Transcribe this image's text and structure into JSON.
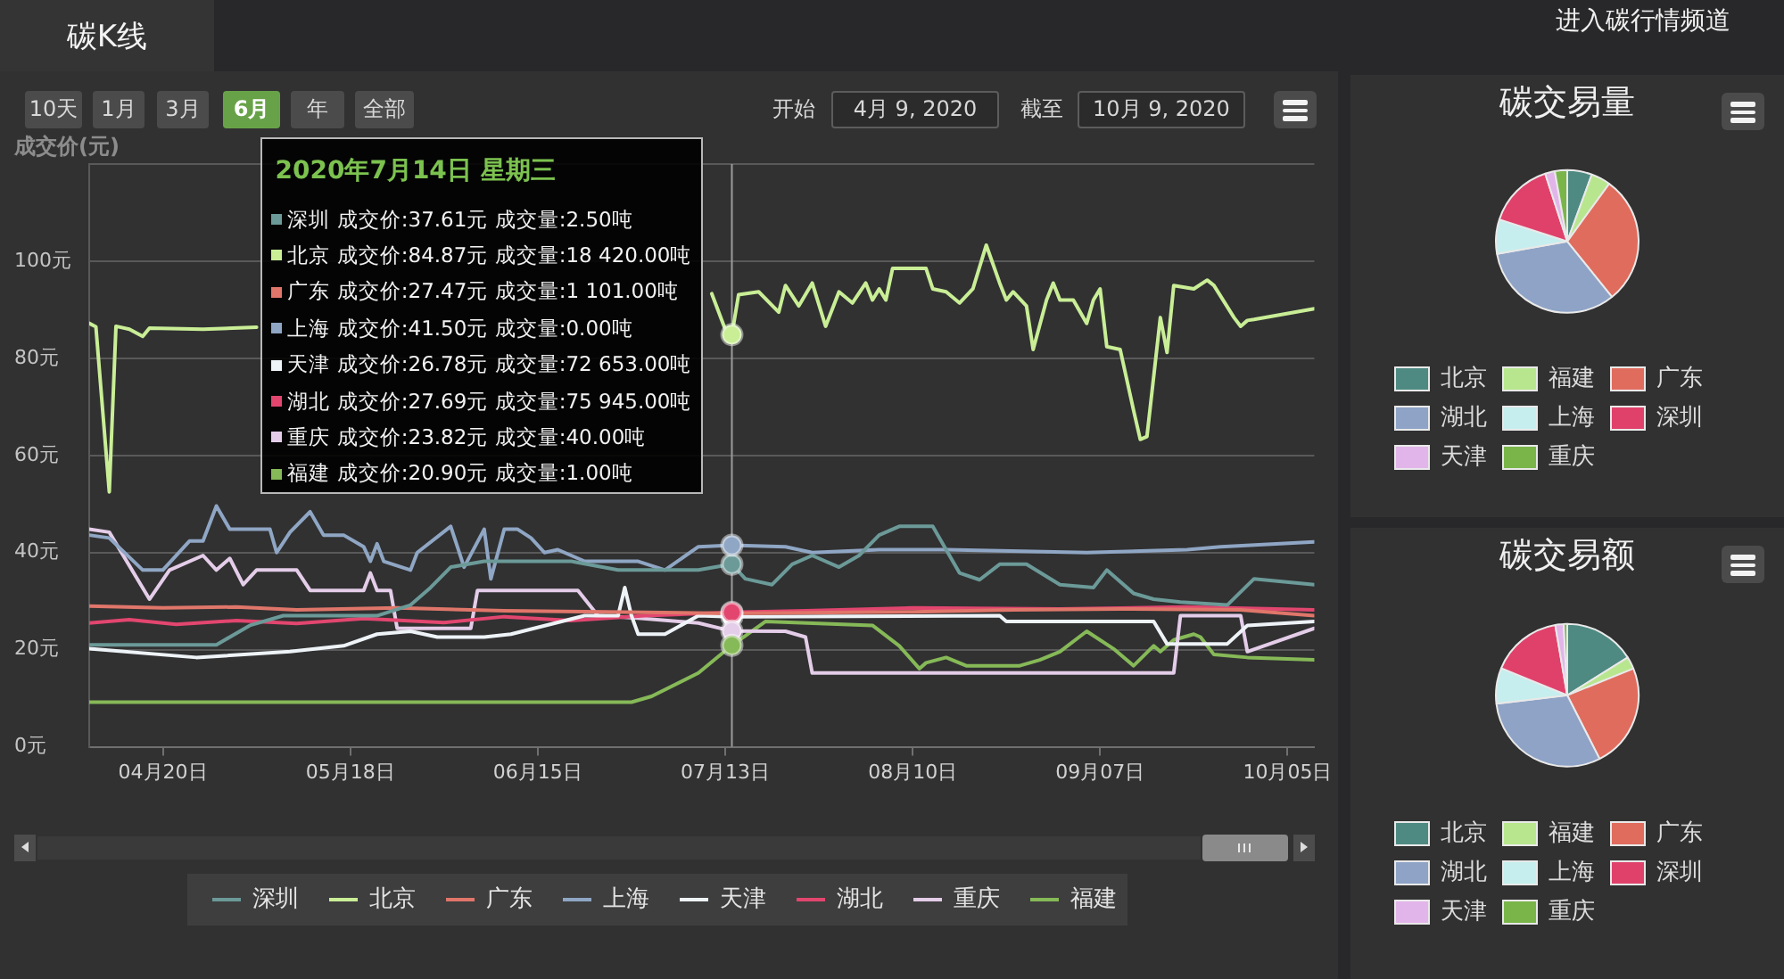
{
  "chart_data": [
    {
      "type": "line",
      "title": "碳K线",
      "ylabel": "成交价(元)",
      "xlim": [
        "2020-04-09",
        "2020-10-09"
      ],
      "xticks": [
        {
          "value": "2020-04-20",
          "label": "04月20日"
        },
        {
          "value": "2020-05-18",
          "label": "05月18日"
        },
        {
          "value": "2020-06-15",
          "label": "06月15日"
        },
        {
          "value": "2020-07-13",
          "label": "07月13日"
        },
        {
          "value": "2020-08-10",
          "label": "08月10日"
        },
        {
          "value": "2020-09-07",
          "label": "09月07日"
        },
        {
          "value": "2020-10-05",
          "label": "10月05日"
        }
      ],
      "ylim": [
        0,
        120
      ],
      "yticks": [
        {
          "value": 0,
          "label": "0元"
        },
        {
          "value": 20,
          "label": "20元"
        },
        {
          "value": 40,
          "label": "40元"
        },
        {
          "value": 60,
          "label": "60元"
        },
        {
          "value": 80,
          "label": "80元"
        },
        {
          "value": 100,
          "label": "100元"
        },
        {
          "value": 120,
          "label": null
        }
      ],
      "grid": "y",
      "legend": "bottom",
      "marker": "none",
      "line_style": "solid",
      "ref_lines": [
        {
          "axis": "x",
          "value": "2020-07-14",
          "color": "#9b9b9b"
        }
      ],
      "annotations": [
        "10天",
        "1月",
        "3月",
        "6月",
        "年",
        "全部",
        "开始",
        "4月 9, 2020",
        "截至",
        "10月 9, 2020",
        "2020年7月14日 星期三",
        "深圳 成交价:37.61元 成交量:2.50吨",
        "北京 成交价:84.87元 成交量:18 420.00吨",
        "广东 成交价:27.47元 成交量:1 101.00吨",
        "上海 成交价:41.50元 成交量:0.00吨",
        "天津 成交价:26.78元 成交量:72 653.00吨",
        "湖北 成交价:27.69元 成交量:75 945.00吨",
        "重庆 成交价:23.82元 成交量:40.00吨",
        "福建 成交价:20.90元 成交量:1.00吨"
      ],
      "series": [
        {
          "name": "深圳",
          "color": "#6b9a98",
          "x": [
            "2020-04-09",
            "2020-04-28",
            "2020-05-03",
            "2020-05-08",
            "2020-05-22",
            "2020-05-27",
            "2020-05-30",
            "2020-06-02",
            "2020-06-07",
            "2020-06-20",
            "2020-06-27",
            "2020-07-09",
            "2020-07-14",
            "2020-07-16",
            "2020-07-20",
            "2020-07-23",
            "2020-07-26",
            "2020-07-30",
            "2020-08-02",
            "2020-08-05",
            "2020-08-08",
            "2020-08-13",
            "2020-08-15",
            "2020-08-17",
            "2020-08-20",
            "2020-08-23",
            "2020-08-27",
            "2020-09-01",
            "2020-09-06",
            "2020-09-08",
            "2020-09-12",
            "2020-09-15",
            "2020-09-19",
            "2020-09-26",
            "2020-09-30",
            "2020-10-09"
          ],
          "values": [
            21.0,
            21.0,
            25.0,
            27.0,
            27.0,
            29.2,
            32.8,
            37.0,
            38.2,
            38.2,
            36.4,
            36.4,
            37.61,
            34.6,
            33.4,
            37.6,
            39.4,
            37.0,
            39.4,
            43.6,
            45.4,
            45.4,
            40.6,
            35.8,
            34.4,
            37.6,
            37.6,
            33.4,
            32.8,
            36.4,
            31.6,
            30.4,
            29.8,
            29.2,
            34.6,
            33.4
          ]
        },
        {
          "name": "北京",
          "color": "#c9ee96",
          "x": [
            "2020-04-09",
            "2020-04-10",
            "2020-04-12",
            "2020-04-13",
            "2020-04-15",
            "2020-04-17",
            "2020-04-18",
            "2020-04-26",
            "2020-05-04",
            "2020-05-05",
            "2020-07-11",
            "2020-07-13",
            "2020-07-14",
            "2020-07-15",
            "2020-07-18",
            "2020-07-21",
            "2020-07-22",
            "2020-07-24",
            "2020-07-26",
            "2020-07-28",
            "2020-07-30",
            "2020-08-01",
            "2020-08-03",
            "2020-08-04",
            "2020-08-05",
            "2020-08-06",
            "2020-08-07",
            "2020-08-12",
            "2020-08-13",
            "2020-08-15",
            "2020-08-17",
            "2020-08-19",
            "2020-08-21",
            "2020-08-23",
            "2020-08-24",
            "2020-08-25",
            "2020-08-27",
            "2020-08-28",
            "2020-08-30",
            "2020-08-31",
            "2020-09-01",
            "2020-09-03",
            "2020-09-05",
            "2020-09-06",
            "2020-09-07",
            "2020-09-08",
            "2020-09-10",
            "2020-09-12",
            "2020-09-13",
            "2020-09-14",
            "2020-09-16",
            "2020-09-17",
            "2020-09-18",
            "2020-09-21",
            "2020-09-23",
            "2020-09-24",
            "2020-09-27",
            "2020-09-28",
            "2020-09-29",
            "2020-09-30",
            "2020-10-09"
          ],
          "values": [
            87.2,
            86.5,
            52.5,
            86.6,
            86.0,
            84.5,
            86.2,
            86.0,
            86.4,
            null,
            93.3,
            86.0,
            84.87,
            93.1,
            93.7,
            89.5,
            95.0,
            90.8,
            95.5,
            86.6,
            93.7,
            91.4,
            95.5,
            92.0,
            94.3,
            92.0,
            98.5,
            98.5,
            94.3,
            93.7,
            91.4,
            94.3,
            103.3,
            95.5,
            92.0,
            93.7,
            90.8,
            81.8,
            92.0,
            95.5,
            92.0,
            92.0,
            87.2,
            92.0,
            94.3,
            82.4,
            81.8,
            69.3,
            63.3,
            63.9,
            88.4,
            81.2,
            95.0,
            94.3,
            96.1,
            95.0,
            88.4,
            86.6,
            87.8,
            88.0,
            90.2
          ]
        },
        {
          "name": "广东",
          "color": "#e0766a",
          "x": [
            "2020-04-09",
            "2020-04-20",
            "2020-05-01",
            "2020-05-10",
            "2020-05-25",
            "2020-06-10",
            "2020-06-25",
            "2020-07-14",
            "2020-07-25",
            "2020-08-10",
            "2020-08-25",
            "2020-09-10",
            "2020-09-28",
            "2020-10-09"
          ],
          "values": [
            29.0,
            28.6,
            28.8,
            28.2,
            28.6,
            28.0,
            27.8,
            27.47,
            27.6,
            27.8,
            28.2,
            28.4,
            28.2,
            27.0
          ]
        },
        {
          "name": "上海",
          "color": "#8fa6c4",
          "x": [
            "2020-04-09",
            "2020-04-12",
            "2020-04-17",
            "2020-04-20",
            "2020-04-24",
            "2020-04-26",
            "2020-04-28",
            "2020-04-30",
            "2020-05-06",
            "2020-05-07",
            "2020-05-09",
            "2020-05-12",
            "2020-05-14",
            "2020-05-17",
            "2020-05-20",
            "2020-05-21",
            "2020-05-22",
            "2020-05-23",
            "2020-05-27",
            "2020-05-28",
            "2020-06-02",
            "2020-06-04",
            "2020-06-07",
            "2020-06-08",
            "2020-06-10",
            "2020-06-12",
            "2020-06-14",
            "2020-06-16",
            "2020-06-18",
            "2020-06-22",
            "2020-06-30",
            "2020-07-04",
            "2020-07-09",
            "2020-07-14",
            "2020-07-22",
            "2020-07-26",
            "2020-08-05",
            "2020-08-15",
            "2020-09-05",
            "2020-09-20",
            "2020-09-25",
            "2020-10-09"
          ],
          "values": [
            43.6,
            43.0,
            36.4,
            36.4,
            42.4,
            42.4,
            49.6,
            44.8,
            44.8,
            40.0,
            44.2,
            48.4,
            43.6,
            43.6,
            41.2,
            38.2,
            41.8,
            38.2,
            36.4,
            40.0,
            45.4,
            37.0,
            44.8,
            34.6,
            44.8,
            44.8,
            43.0,
            40.0,
            40.6,
            38.2,
            38.2,
            36.4,
            41.2,
            41.5,
            41.2,
            40.0,
            40.6,
            40.6,
            40.0,
            40.6,
            41.2,
            42.2
          ]
        },
        {
          "name": "天津",
          "color": "#eef3f7",
          "x": [
            "2020-04-09",
            "2020-04-25",
            "2020-05-09",
            "2020-05-17",
            "2020-05-22",
            "2020-05-27",
            "2020-05-31",
            "2020-06-07",
            "2020-06-11",
            "2020-06-22",
            "2020-06-27",
            "2020-06-28",
            "2020-06-29",
            "2020-06-30",
            "2020-07-04",
            "2020-07-09",
            "2020-07-14",
            "2020-08-23",
            "2020-08-24",
            "2020-09-15",
            "2020-09-17",
            "2020-09-26",
            "2020-09-29",
            "2020-10-09"
          ],
          "values": [
            20.2,
            18.4,
            19.6,
            20.8,
            23.2,
            23.8,
            22.6,
            22.6,
            23.2,
            27.0,
            27.0,
            32.8,
            27.0,
            23.2,
            23.2,
            27.0,
            26.78,
            27.0,
            25.8,
            25.8,
            21.2,
            21.2,
            25.0,
            25.8
          ]
        },
        {
          "name": "湖北",
          "color": "#e2466f",
          "x": [
            "2020-04-09",
            "2020-04-15",
            "2020-04-22",
            "2020-05-01",
            "2020-05-10",
            "2020-05-20",
            "2020-06-01",
            "2020-06-10",
            "2020-06-20",
            "2020-07-01",
            "2020-07-14",
            "2020-07-25",
            "2020-08-10",
            "2020-09-01",
            "2020-09-20",
            "2020-10-09"
          ],
          "values": [
            25.5,
            26.2,
            25.2,
            26.0,
            25.4,
            26.4,
            25.6,
            26.8,
            26.0,
            27.0,
            27.69,
            28.0,
            28.6,
            28.4,
            28.8,
            28.2
          ]
        },
        {
          "name": "重庆",
          "color": "#e4cde8",
          "x": [
            "2020-04-09",
            "2020-04-12",
            "2020-04-18",
            "2020-04-21",
            "2020-04-26",
            "2020-04-28",
            "2020-04-30",
            "2020-05-02",
            "2020-05-04",
            "2020-05-10",
            "2020-05-12",
            "2020-05-20",
            "2020-05-21",
            "2020-05-22",
            "2020-05-24",
            "2020-05-25",
            "2020-06-05",
            "2020-06-06",
            "2020-06-21",
            "2020-06-24",
            "2020-06-30",
            "2020-07-09",
            "2020-07-14",
            "2020-07-22",
            "2020-07-25",
            "2020-07-26",
            "2020-09-18",
            "2020-09-19",
            "2020-09-28",
            "2020-09-29",
            "2020-10-09"
          ],
          "values": [
            44.8,
            44.2,
            30.4,
            36.4,
            39.4,
            36.4,
            38.8,
            33.4,
            36.4,
            36.4,
            32.2,
            32.2,
            35.8,
            32.2,
            32.2,
            24.4,
            24.4,
            32.2,
            32.2,
            27.0,
            26.5,
            25.5,
            23.82,
            23.8,
            22.6,
            15.2,
            15.2,
            27.0,
            27.0,
            19.6,
            24.4
          ]
        },
        {
          "name": "福建",
          "color": "#86b957",
          "x": [
            "2020-04-09",
            "2020-06-29",
            "2020-07-02",
            "2020-07-09",
            "2020-07-14",
            "2020-07-19",
            "2020-08-04",
            "2020-08-08",
            "2020-08-11",
            "2020-08-12",
            "2020-08-15",
            "2020-08-18",
            "2020-08-26",
            "2020-08-29",
            "2020-09-01",
            "2020-09-05",
            "2020-09-09",
            "2020-09-12",
            "2020-09-15",
            "2020-09-16",
            "2020-09-18",
            "2020-09-21",
            "2020-09-22",
            "2020-09-24",
            "2020-09-29",
            "2020-10-09"
          ],
          "values": [
            9.2,
            9.2,
            10.4,
            15.2,
            20.9,
            25.8,
            25.0,
            20.8,
            16.1,
            17.3,
            18.4,
            16.7,
            16.7,
            17.9,
            19.6,
            23.8,
            20.2,
            16.7,
            20.8,
            19.6,
            22.0,
            23.2,
            22.6,
            19.0,
            18.4,
            17.9
          ]
        }
      ]
    },
    {
      "type": "pie",
      "title": "碳交易量",
      "annotations": [
        "进入碳行情频道"
      ],
      "legend": "bottom",
      "categories": [
        "北京",
        "福建",
        "广东",
        "湖北",
        "上海",
        "深圳",
        "天津",
        "重庆"
      ],
      "values": [
        5.6,
        4.4,
        29.2,
        33.0,
        7.8,
        15.0,
        2.2,
        2.8
      ],
      "colors": [
        "#4e8a82",
        "#b8e68e",
        "#e06c5e",
        "#8ea3c6",
        "#c6eeee",
        "#e0416b",
        "#e2b5ea",
        "#7ab54a"
      ]
    },
    {
      "type": "pie",
      "title": "碳交易额",
      "legend": "bottom",
      "categories": [
        "北京",
        "福建",
        "广东",
        "湖北",
        "上海",
        "深圳",
        "天津",
        "重庆"
      ],
      "values": [
        16.1,
        2.8,
        23.6,
        30.6,
        8.1,
        16.1,
        1.9,
        0.8
      ],
      "colors": [
        "#4e8a82",
        "#b8e68e",
        "#e06c5e",
        "#8ea3c6",
        "#c6eeee",
        "#e0416b",
        "#e2b5ea",
        "#7ab54a"
      ]
    }
  ]
}
